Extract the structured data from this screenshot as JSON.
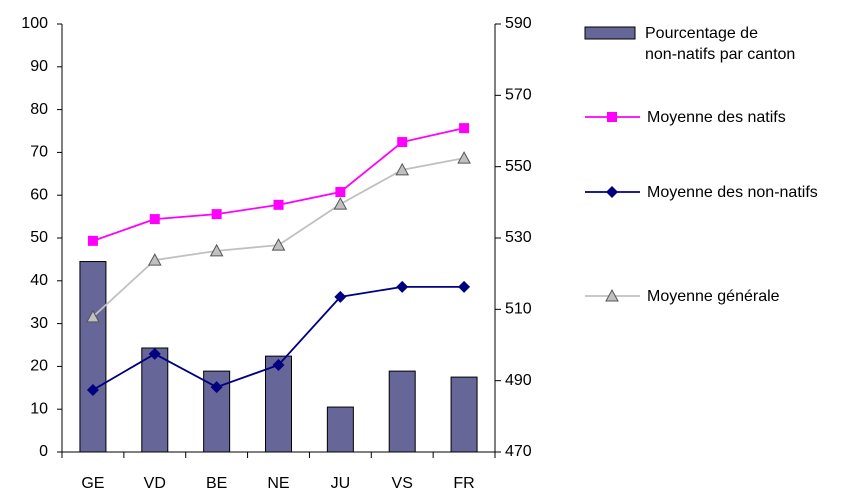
{
  "chart_data": {
    "type": "combo",
    "categories": [
      "GE",
      "VD",
      "BE",
      "NE",
      "JU",
      "VS",
      "FR"
    ],
    "ylim": [
      0,
      100
    ],
    "yticks": [
      0,
      10,
      20,
      30,
      40,
      50,
      60,
      70,
      80,
      90,
      100
    ],
    "y2lim": [
      470,
      590
    ],
    "y2ticks": [
      470,
      490,
      510,
      530,
      550,
      570,
      590
    ],
    "grid": false,
    "series": [
      {
        "name": "Pourcentage de\nnon-natifs par canton",
        "type": "bar",
        "color": "#666699",
        "values": [
          44.5,
          24.3,
          18.9,
          22.4,
          10.5,
          18.9,
          17.5
        ]
      },
      {
        "name": "Moyenne des natifs",
        "type": "line",
        "marker": "square",
        "axis": "y2",
        "color": "#ff00ff",
        "values": [
          529.2,
          535.3,
          536.7,
          539.3,
          542.9,
          556.9,
          560.8
        ]
      },
      {
        "name": "Moyenne des non-natifs",
        "type": "line",
        "marker": "diamond",
        "axis": "y2",
        "color": "#000080",
        "values": [
          487.4,
          497.5,
          488.2,
          494.4,
          513.5,
          516.3,
          516.3
        ]
      },
      {
        "name": "Moyenne générale",
        "type": "line",
        "marker": "triangle",
        "axis": "y2",
        "color": "#c0c0c0",
        "values": [
          507.9,
          523.8,
          526.4,
          528.0,
          539.5,
          549.1,
          552.4
        ]
      }
    ]
  }
}
